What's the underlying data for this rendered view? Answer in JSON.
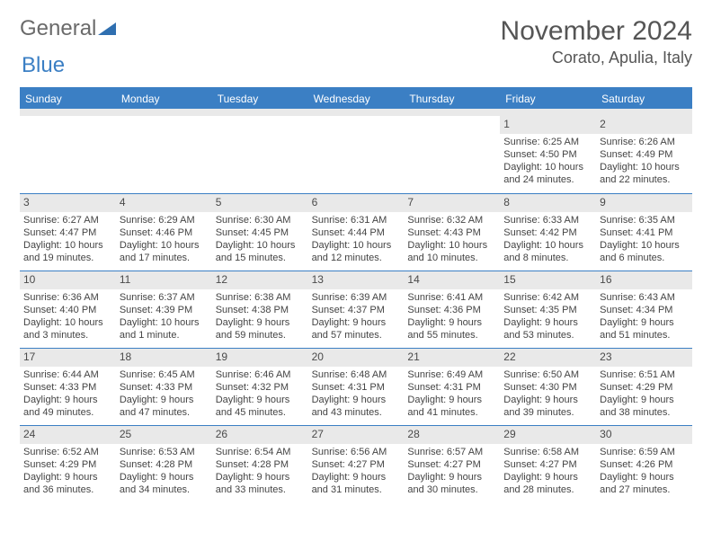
{
  "logo": {
    "text1": "General",
    "text2": "Blue"
  },
  "title": "November 2024",
  "location": "Corato, Apulia, Italy",
  "dayHeaders": [
    "Sunday",
    "Monday",
    "Tuesday",
    "Wednesday",
    "Thursday",
    "Friday",
    "Saturday"
  ],
  "colors": {
    "accent": "#3b7fc4",
    "headerText": "#ffffff",
    "dayStrip": "#e9e9e9",
    "text": "#444444",
    "background": "#ffffff"
  },
  "weeks": [
    [
      {
        "num": "",
        "sunrise": "",
        "sunset": "",
        "daylight": ""
      },
      {
        "num": "",
        "sunrise": "",
        "sunset": "",
        "daylight": ""
      },
      {
        "num": "",
        "sunrise": "",
        "sunset": "",
        "daylight": ""
      },
      {
        "num": "",
        "sunrise": "",
        "sunset": "",
        "daylight": ""
      },
      {
        "num": "",
        "sunrise": "",
        "sunset": "",
        "daylight": ""
      },
      {
        "num": "1",
        "sunrise": "Sunrise: 6:25 AM",
        "sunset": "Sunset: 4:50 PM",
        "daylight": "Daylight: 10 hours and 24 minutes."
      },
      {
        "num": "2",
        "sunrise": "Sunrise: 6:26 AM",
        "sunset": "Sunset: 4:49 PM",
        "daylight": "Daylight: 10 hours and 22 minutes."
      }
    ],
    [
      {
        "num": "3",
        "sunrise": "Sunrise: 6:27 AM",
        "sunset": "Sunset: 4:47 PM",
        "daylight": "Daylight: 10 hours and 19 minutes."
      },
      {
        "num": "4",
        "sunrise": "Sunrise: 6:29 AM",
        "sunset": "Sunset: 4:46 PM",
        "daylight": "Daylight: 10 hours and 17 minutes."
      },
      {
        "num": "5",
        "sunrise": "Sunrise: 6:30 AM",
        "sunset": "Sunset: 4:45 PM",
        "daylight": "Daylight: 10 hours and 15 minutes."
      },
      {
        "num": "6",
        "sunrise": "Sunrise: 6:31 AM",
        "sunset": "Sunset: 4:44 PM",
        "daylight": "Daylight: 10 hours and 12 minutes."
      },
      {
        "num": "7",
        "sunrise": "Sunrise: 6:32 AM",
        "sunset": "Sunset: 4:43 PM",
        "daylight": "Daylight: 10 hours and 10 minutes."
      },
      {
        "num": "8",
        "sunrise": "Sunrise: 6:33 AM",
        "sunset": "Sunset: 4:42 PM",
        "daylight": "Daylight: 10 hours and 8 minutes."
      },
      {
        "num": "9",
        "sunrise": "Sunrise: 6:35 AM",
        "sunset": "Sunset: 4:41 PM",
        "daylight": "Daylight: 10 hours and 6 minutes."
      }
    ],
    [
      {
        "num": "10",
        "sunrise": "Sunrise: 6:36 AM",
        "sunset": "Sunset: 4:40 PM",
        "daylight": "Daylight: 10 hours and 3 minutes."
      },
      {
        "num": "11",
        "sunrise": "Sunrise: 6:37 AM",
        "sunset": "Sunset: 4:39 PM",
        "daylight": "Daylight: 10 hours and 1 minute."
      },
      {
        "num": "12",
        "sunrise": "Sunrise: 6:38 AM",
        "sunset": "Sunset: 4:38 PM",
        "daylight": "Daylight: 9 hours and 59 minutes."
      },
      {
        "num": "13",
        "sunrise": "Sunrise: 6:39 AM",
        "sunset": "Sunset: 4:37 PM",
        "daylight": "Daylight: 9 hours and 57 minutes."
      },
      {
        "num": "14",
        "sunrise": "Sunrise: 6:41 AM",
        "sunset": "Sunset: 4:36 PM",
        "daylight": "Daylight: 9 hours and 55 minutes."
      },
      {
        "num": "15",
        "sunrise": "Sunrise: 6:42 AM",
        "sunset": "Sunset: 4:35 PM",
        "daylight": "Daylight: 9 hours and 53 minutes."
      },
      {
        "num": "16",
        "sunrise": "Sunrise: 6:43 AM",
        "sunset": "Sunset: 4:34 PM",
        "daylight": "Daylight: 9 hours and 51 minutes."
      }
    ],
    [
      {
        "num": "17",
        "sunrise": "Sunrise: 6:44 AM",
        "sunset": "Sunset: 4:33 PM",
        "daylight": "Daylight: 9 hours and 49 minutes."
      },
      {
        "num": "18",
        "sunrise": "Sunrise: 6:45 AM",
        "sunset": "Sunset: 4:33 PM",
        "daylight": "Daylight: 9 hours and 47 minutes."
      },
      {
        "num": "19",
        "sunrise": "Sunrise: 6:46 AM",
        "sunset": "Sunset: 4:32 PM",
        "daylight": "Daylight: 9 hours and 45 minutes."
      },
      {
        "num": "20",
        "sunrise": "Sunrise: 6:48 AM",
        "sunset": "Sunset: 4:31 PM",
        "daylight": "Daylight: 9 hours and 43 minutes."
      },
      {
        "num": "21",
        "sunrise": "Sunrise: 6:49 AM",
        "sunset": "Sunset: 4:31 PM",
        "daylight": "Daylight: 9 hours and 41 minutes."
      },
      {
        "num": "22",
        "sunrise": "Sunrise: 6:50 AM",
        "sunset": "Sunset: 4:30 PM",
        "daylight": "Daylight: 9 hours and 39 minutes."
      },
      {
        "num": "23",
        "sunrise": "Sunrise: 6:51 AM",
        "sunset": "Sunset: 4:29 PM",
        "daylight": "Daylight: 9 hours and 38 minutes."
      }
    ],
    [
      {
        "num": "24",
        "sunrise": "Sunrise: 6:52 AM",
        "sunset": "Sunset: 4:29 PM",
        "daylight": "Daylight: 9 hours and 36 minutes."
      },
      {
        "num": "25",
        "sunrise": "Sunrise: 6:53 AM",
        "sunset": "Sunset: 4:28 PM",
        "daylight": "Daylight: 9 hours and 34 minutes."
      },
      {
        "num": "26",
        "sunrise": "Sunrise: 6:54 AM",
        "sunset": "Sunset: 4:28 PM",
        "daylight": "Daylight: 9 hours and 33 minutes."
      },
      {
        "num": "27",
        "sunrise": "Sunrise: 6:56 AM",
        "sunset": "Sunset: 4:27 PM",
        "daylight": "Daylight: 9 hours and 31 minutes."
      },
      {
        "num": "28",
        "sunrise": "Sunrise: 6:57 AM",
        "sunset": "Sunset: 4:27 PM",
        "daylight": "Daylight: 9 hours and 30 minutes."
      },
      {
        "num": "29",
        "sunrise": "Sunrise: 6:58 AM",
        "sunset": "Sunset: 4:27 PM",
        "daylight": "Daylight: 9 hours and 28 minutes."
      },
      {
        "num": "30",
        "sunrise": "Sunrise: 6:59 AM",
        "sunset": "Sunset: 4:26 PM",
        "daylight": "Daylight: 9 hours and 27 minutes."
      }
    ]
  ]
}
